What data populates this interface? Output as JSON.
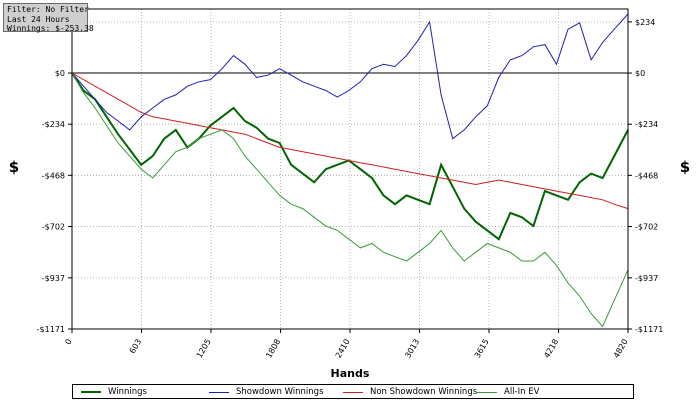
{
  "filter": {
    "line1": "Filter: No Filter",
    "line2": "Last  24 Hours",
    "line3": "Winnings: $-253.38"
  },
  "chart_data": {
    "type": "line",
    "xlabel": "Hands",
    "ylabel": "$",
    "xlim": [
      0,
      4820
    ],
    "ylim": [
      -1171,
      293
    ],
    "x_ticks": [
      0,
      603,
      1205,
      1808,
      2410,
      3013,
      3615,
      4218,
      4820
    ],
    "y_ticks": [
      234,
      0,
      -234,
      -468,
      -702,
      -937,
      -1171
    ],
    "y_tick_labels": [
      "$234",
      "$0",
      "-$234",
      "-$468",
      "-$702",
      "-$937",
      "-$1171"
    ],
    "grid": true,
    "legend_position": "bottom",
    "series": [
      {
        "name": "Winnings",
        "color": "#006400",
        "x": [
          0,
          100,
          200,
          300,
          400,
          500,
          600,
          700,
          800,
          900,
          1000,
          1100,
          1200,
          1300,
          1400,
          1500,
          1600,
          1700,
          1800,
          1900,
          2000,
          2100,
          2200,
          2300,
          2400,
          2500,
          2600,
          2700,
          2800,
          2900,
          3000,
          3100,
          3200,
          3300,
          3400,
          3500,
          3600,
          3700,
          3800,
          3900,
          4000,
          4100,
          4200,
          4300,
          4400,
          4500,
          4600,
          4700,
          4820
        ],
        "values": [
          0,
          -80,
          -120,
          -200,
          -280,
          -350,
          -420,
          -380,
          -300,
          -260,
          -340,
          -300,
          -240,
          -200,
          -160,
          -220,
          -250,
          -300,
          -320,
          -420,
          -460,
          -500,
          -440,
          -420,
          -400,
          -440,
          -480,
          -560,
          -600,
          -560,
          -580,
          -600,
          -420,
          -520,
          -620,
          -680,
          -720,
          -760,
          -640,
          -660,
          -700,
          -540,
          -560,
          -580,
          -500,
          -460,
          -480,
          -380,
          -260
        ]
      },
      {
        "name": "Showdown Winnings",
        "color": "#2020b0",
        "x": [
          0,
          100,
          200,
          300,
          400,
          500,
          600,
          700,
          800,
          900,
          1000,
          1100,
          1200,
          1300,
          1400,
          1500,
          1600,
          1700,
          1800,
          1900,
          2000,
          2100,
          2200,
          2300,
          2400,
          2500,
          2600,
          2700,
          2800,
          2900,
          3000,
          3100,
          3200,
          3300,
          3400,
          3500,
          3600,
          3700,
          3800,
          3900,
          4000,
          4100,
          4200,
          4300,
          4400,
          4500,
          4600,
          4700,
          4820
        ],
        "values": [
          0,
          -60,
          -120,
          -180,
          -220,
          -260,
          -200,
          -160,
          -120,
          -100,
          -60,
          -40,
          -30,
          20,
          80,
          40,
          -20,
          -10,
          20,
          -10,
          -40,
          -60,
          -80,
          -110,
          -80,
          -40,
          20,
          40,
          30,
          80,
          150,
          234,
          -100,
          -300,
          -260,
          -200,
          -150,
          -20,
          60,
          80,
          120,
          130,
          40,
          200,
          230,
          60,
          140,
          200,
          270
        ]
      },
      {
        "name": "Non Showdown Winnings",
        "color": "#cc2020",
        "x": [
          0,
          100,
          200,
          300,
          400,
          500,
          600,
          700,
          800,
          900,
          1000,
          1100,
          1200,
          1300,
          1400,
          1500,
          1600,
          1700,
          1800,
          1900,
          2000,
          2100,
          2200,
          2300,
          2400,
          2500,
          2600,
          2700,
          2800,
          2900,
          3000,
          3100,
          3200,
          3300,
          3400,
          3500,
          3600,
          3700,
          3800,
          3900,
          4000,
          4100,
          4200,
          4300,
          4400,
          4500,
          4600,
          4700,
          4820
        ],
        "values": [
          0,
          -30,
          -60,
          -90,
          -120,
          -150,
          -180,
          -200,
          -210,
          -220,
          -230,
          -240,
          -250,
          -260,
          -270,
          -280,
          -300,
          -320,
          -340,
          -350,
          -360,
          -370,
          -380,
          -390,
          -400,
          -410,
          -420,
          -430,
          -440,
          -450,
          -460,
          -470,
          -480,
          -490,
          -500,
          -510,
          -500,
          -490,
          -500,
          -510,
          -520,
          -530,
          -540,
          -550,
          -560,
          -570,
          -580,
          -600,
          -620
        ]
      },
      {
        "name": "All-In EV",
        "color": "#3a9a3a",
        "x": [
          0,
          100,
          200,
          300,
          400,
          500,
          600,
          700,
          800,
          900,
          1000,
          1100,
          1200,
          1300,
          1400,
          1500,
          1600,
          1700,
          1800,
          1900,
          2000,
          2100,
          2200,
          2300,
          2400,
          2500,
          2600,
          2700,
          2800,
          2900,
          3000,
          3100,
          3200,
          3300,
          3400,
          3500,
          3600,
          3700,
          3800,
          3900,
          4000,
          4100,
          4200,
          4300,
          4400,
          4500,
          4600,
          4700,
          4820
        ],
        "values": [
          0,
          -90,
          -160,
          -240,
          -320,
          -380,
          -440,
          -480,
          -420,
          -360,
          -340,
          -300,
          -280,
          -260,
          -300,
          -380,
          -440,
          -500,
          -560,
          -600,
          -620,
          -660,
          -700,
          -720,
          -760,
          -800,
          -780,
          -820,
          -840,
          -860,
          -820,
          -780,
          -720,
          -800,
          -860,
          -820,
          -780,
          -800,
          -820,
          -860,
          -860,
          -820,
          -880,
          -960,
          -1020,
          -1100,
          -1160,
          -1040,
          -900
        ]
      }
    ]
  }
}
